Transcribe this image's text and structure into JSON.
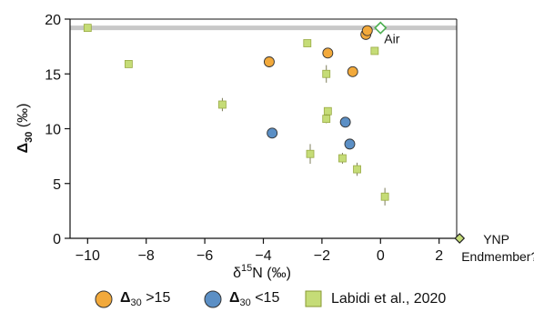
{
  "chart_data": {
    "type": "scatter",
    "xlim": [
      -10.6,
      2.6
    ],
    "ylim": [
      0,
      20
    ],
    "x_ticks": [
      -10,
      -8,
      -6,
      -4,
      -2,
      0,
      2
    ],
    "x_tick_labels": [
      "−10",
      "−8",
      "−6",
      "−4",
      "−2",
      "0",
      "2"
    ],
    "y_ticks": [
      0,
      5,
      10,
      15,
      20
    ],
    "y_tick_labels": [
      "0",
      "5",
      "10",
      "15",
      "20"
    ],
    "x_label": {
      "base": "δ",
      "sup": "15",
      "rest": "N (‰)"
    },
    "y_label": {
      "symbol": "Δ",
      "sub": "30",
      "rest": " (‰)"
    },
    "air_band": {
      "y": 19.2
    },
    "series": [
      {
        "name": "Δ30 >15",
        "color": "#f2a93b",
        "marker": "circle",
        "points": [
          {
            "x": -3.8,
            "y": 16.1
          },
          {
            "x": -1.8,
            "y": 16.9
          },
          {
            "x": -0.5,
            "y": 18.6
          },
          {
            "x": -0.45,
            "y": 18.95
          },
          {
            "x": -0.95,
            "y": 15.2
          }
        ]
      },
      {
        "name": "Δ30 <15",
        "color": "#5b8fc5",
        "marker": "circle",
        "points": [
          {
            "x": -3.7,
            "y": 9.6
          },
          {
            "x": -1.2,
            "y": 10.6
          },
          {
            "x": -1.05,
            "y": 8.6
          }
        ]
      },
      {
        "name": "Labidi et al., 2020",
        "color": "#c5dc77",
        "marker": "square",
        "points": [
          {
            "x": -10.0,
            "y": 19.2,
            "err": 0.3
          },
          {
            "x": -8.6,
            "y": 15.9,
            "err": 0.3
          },
          {
            "x": -5.4,
            "y": 12.2,
            "err": 0.6
          },
          {
            "x": -2.5,
            "y": 17.8,
            "err": 0.3
          },
          {
            "x": -2.4,
            "y": 7.7,
            "err": 0.9
          },
          {
            "x": -1.85,
            "y": 15.0,
            "err": 0.8
          },
          {
            "x": -1.8,
            "y": 11.6,
            "err": 0.3
          },
          {
            "x": -1.85,
            "y": 10.9,
            "err": 0.4
          },
          {
            "x": -1.3,
            "y": 7.3,
            "err": 0.5
          },
          {
            "x": -0.8,
            "y": 6.3,
            "err": 0.6
          },
          {
            "x": -0.2,
            "y": 17.1,
            "err": 0.3
          },
          {
            "x": 0.15,
            "y": 3.8,
            "err": 0.8
          }
        ]
      }
    ],
    "annotations": [
      {
        "label": "Air",
        "x": 0.0,
        "y": 19.2,
        "marker": "diamond-open",
        "color": "#4caf50"
      },
      {
        "label": "YNP Endmember?",
        "line1": "YNP",
        "line2": "Endmember?",
        "x": 2.7,
        "y": 0.0,
        "marker": "diamond-filled",
        "color": "#c5dc77"
      }
    ]
  },
  "legend": {
    "items": [
      {
        "symbol": "Δ",
        "sub": "30",
        "rest": " >15"
      },
      {
        "symbol": "Δ",
        "sub": "30",
        "rest": " <15"
      },
      {
        "text": "Labidi et al., 2020"
      }
    ]
  }
}
